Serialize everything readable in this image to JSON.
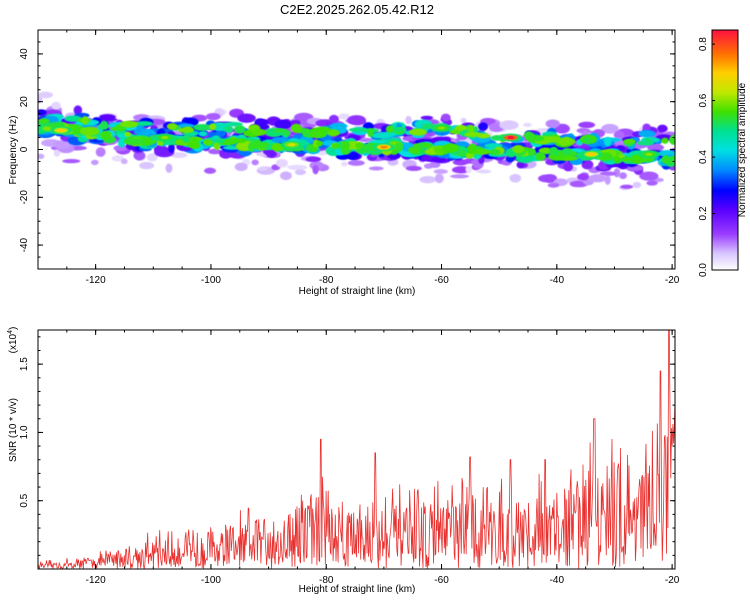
{
  "figure_title": "C2E2.2025.262.05.42.R12",
  "chart_data": [
    {
      "type": "heatmap",
      "title": "C2E2.2025.262.05.42.R12",
      "xlabel": "Height of straight line (km)",
      "ylabel": "Frequency (Hz)",
      "xlim": [
        -130,
        -19.5
      ],
      "ylim": [
        -50,
        50
      ],
      "x_ticks": [
        -120,
        -100,
        -80,
        -60,
        -40,
        -20
      ],
      "y_ticks": [
        -40,
        -20,
        0,
        20,
        40
      ],
      "colorbar": {
        "label": "Normalized spectral amplitude",
        "range": [
          0.0,
          0.85
        ],
        "ticks": [
          "0.0",
          "0.2",
          "0.4",
          "0.6",
          "0.8"
        ]
      },
      "ridge_main": [
        {
          "x": -128,
          "y": 10
        },
        {
          "x": -120,
          "y": 6
        },
        {
          "x": -110,
          "y": 4
        },
        {
          "x": -100,
          "y": 3
        },
        {
          "x": -90,
          "y": 2
        },
        {
          "x": -80,
          "y": 1
        },
        {
          "x": -70,
          "y": 1
        },
        {
          "x": -60,
          "y": 0
        },
        {
          "x": -50,
          "y": -1
        },
        {
          "x": -40,
          "y": -2
        },
        {
          "x": -30,
          "y": -3
        },
        {
          "x": -20,
          "y": -4
        }
      ],
      "ridge_upper": [
        {
          "x": -128,
          "y": 12
        },
        {
          "x": -110,
          "y": 9
        },
        {
          "x": -90,
          "y": 8
        },
        {
          "x": -70,
          "y": 7
        },
        {
          "x": -60,
          "y": 9
        },
        {
          "x": -50,
          "y": 6
        },
        {
          "x": -40,
          "y": 4
        },
        {
          "x": -30,
          "y": 3
        },
        {
          "x": -20,
          "y": 5
        }
      ],
      "peaks": [
        {
          "x": -126,
          "y": 8,
          "amplitude": 0.7
        },
        {
          "x": -108,
          "y": 5,
          "amplitude": 0.6
        },
        {
          "x": -86,
          "y": 2,
          "amplitude": 0.65
        },
        {
          "x": -70,
          "y": 1,
          "amplitude": 0.75
        },
        {
          "x": -60,
          "y": 9,
          "amplitude": 0.6
        },
        {
          "x": -48,
          "y": 5,
          "amplitude": 0.85
        },
        {
          "x": -34,
          "y": -2,
          "amplitude": 0.7
        },
        {
          "x": -24,
          "y": -2,
          "amplitude": 0.6
        }
      ]
    },
    {
      "type": "line",
      "xlabel": "Height of straight line (km)",
      "ylabel": "SNR (10 * v/v)",
      "exponent_label": "(x10",
      "exponent_power": "4",
      "exponent_close": ")",
      "xlim": [
        -130,
        -19.5
      ],
      "ylim": [
        0,
        1.75
      ],
      "x_ticks": [
        -120,
        -100,
        -80,
        -60,
        -40,
        -20
      ],
      "y_ticks": [
        0.5,
        1.0,
        1.5
      ],
      "y_tick_labels": [
        "0.5",
        "1.0",
        "1.5"
      ],
      "color": "#e8312f",
      "series": [
        {
          "name": "SNR",
          "x": [
            -130,
            -125,
            -120,
            -115,
            -110,
            -105,
            -100,
            -95,
            -90,
            -85,
            -80,
            -75,
            -70,
            -65,
            -60,
            -55,
            -50,
            -45,
            -40,
            -35,
            -30,
            -25,
            -21,
            -20
          ],
          "envelope": [
            0.06,
            0.08,
            0.12,
            0.22,
            0.28,
            0.32,
            0.38,
            0.45,
            0.55,
            0.7,
            0.8,
            0.62,
            0.65,
            0.6,
            0.68,
            0.7,
            0.78,
            0.72,
            0.72,
            1.0,
            1.05,
            1.1,
            1.35,
            1.75
          ],
          "baseline": [
            0.02,
            0.03,
            0.05,
            0.07,
            0.09,
            0.1,
            0.12,
            0.14,
            0.16,
            0.18,
            0.2,
            0.2,
            0.2,
            0.21,
            0.22,
            0.22,
            0.23,
            0.24,
            0.25,
            0.28,
            0.3,
            0.32,
            0.35,
            0.4
          ]
        }
      ],
      "notable_peaks": [
        {
          "x": -81,
          "y": 0.95
        },
        {
          "x": -71.5,
          "y": 0.85
        },
        {
          "x": -55,
          "y": 0.82
        },
        {
          "x": -48,
          "y": 0.8
        },
        {
          "x": -42,
          "y": 0.8
        },
        {
          "x": -33.5,
          "y": 1.1
        },
        {
          "x": -22,
          "y": 1.45
        },
        {
          "x": -20.5,
          "y": 1.75
        }
      ]
    }
  ]
}
